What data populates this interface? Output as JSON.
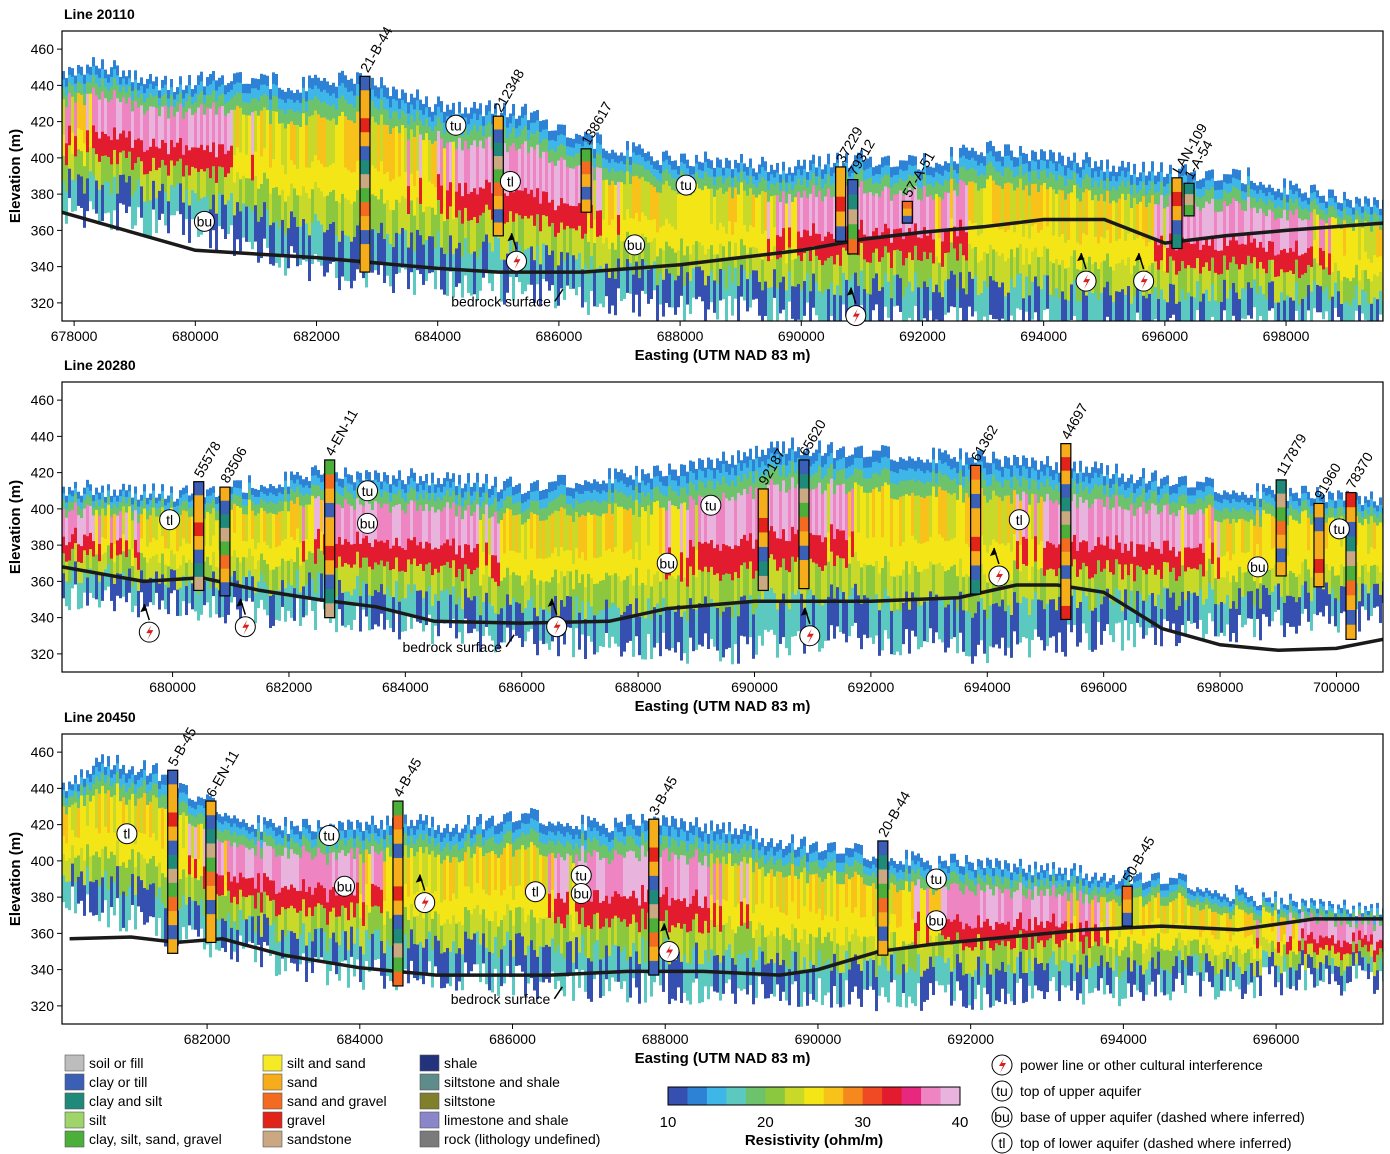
{
  "panels": [
    {
      "title": "Line 20110",
      "ylabel": "Elevation (m)",
      "xlabel": "Easting (UTM NAD 83 m)",
      "xlim": [
        677800,
        699600
      ],
      "ylim": [
        310,
        470
      ],
      "xticks": [
        "678000",
        "680000",
        "682000",
        "684000",
        "686000",
        "688000",
        "690000",
        "692000",
        "694000",
        "696000",
        "698000"
      ],
      "yticks": [
        "320",
        "340",
        "360",
        "380",
        "400",
        "420",
        "440",
        "460"
      ],
      "bedrock_label": "bedrock surface",
      "wells": [
        {
          "name": "21-B-44",
          "x": 682800,
          "top": 445,
          "bottom": 337
        },
        {
          "name": "212348",
          "x": 685000,
          "top": 423,
          "bottom": 357
        },
        {
          "name": "138617",
          "x": 686450,
          "top": 405,
          "bottom": 370
        },
        {
          "name": "37229",
          "x": 690650,
          "top": 395,
          "bottom": 354
        },
        {
          "name": "79312",
          "x": 690850,
          "top": 388,
          "bottom": 347
        },
        {
          "name": "57-A-51",
          "x": 691750,
          "top": 376,
          "bottom": 364
        },
        {
          "name": "LAN-109",
          "x": 696200,
          "top": 389,
          "bottom": 350
        },
        {
          "name": "1-A-54",
          "x": 696400,
          "top": 386,
          "bottom": 368
        }
      ],
      "markers": [
        {
          "code": "tu",
          "x": 684300,
          "y": 418
        },
        {
          "code": "tl",
          "x": 685200,
          "y": 387
        },
        {
          "code": "bu",
          "x": 680150,
          "y": 365
        },
        {
          "code": "tu",
          "x": 688100,
          "y": 385
        },
        {
          "code": "bu",
          "x": 687250,
          "y": 352
        },
        {
          "code": "pl",
          "x": 685300,
          "y": 343
        },
        {
          "code": "pl",
          "x": 690900,
          "y": 313
        },
        {
          "code": "pl",
          "x": 694700,
          "y": 332
        },
        {
          "code": "pl",
          "x": 695650,
          "y": 332
        }
      ]
    },
    {
      "title": "Line 20280",
      "ylabel": "Elevation (m)",
      "xlabel": "Easting (UTM NAD 83 m)",
      "xlim": [
        678100,
        700800
      ],
      "ylim": [
        310,
        470
      ],
      "xticks": [
        "680000",
        "682000",
        "684000",
        "686000",
        "688000",
        "690000",
        "692000",
        "694000",
        "696000",
        "698000",
        "700000"
      ],
      "yticks": [
        "320",
        "340",
        "360",
        "380",
        "400",
        "420",
        "440",
        "460"
      ],
      "bedrock_label": "bedrock surface",
      "wells": [
        {
          "name": "55578",
          "x": 680450,
          "top": 415,
          "bottom": 355
        },
        {
          "name": "83506",
          "x": 680900,
          "top": 412,
          "bottom": 352
        },
        {
          "name": "4-EN-11",
          "x": 682700,
          "top": 427,
          "bottom": 340
        },
        {
          "name": "92187",
          "x": 690150,
          "top": 411,
          "bottom": 355
        },
        {
          "name": "65620",
          "x": 690850,
          "top": 427,
          "bottom": 356
        },
        {
          "name": "61362",
          "x": 693800,
          "top": 424,
          "bottom": 353
        },
        {
          "name": "44697",
          "x": 695350,
          "top": 436,
          "bottom": 339
        },
        {
          "name": "117879",
          "x": 699050,
          "top": 416,
          "bottom": 363
        },
        {
          "name": "91960",
          "x": 699700,
          "top": 403,
          "bottom": 357
        },
        {
          "name": "78370",
          "x": 700250,
          "top": 409,
          "bottom": 328
        }
      ],
      "markers": [
        {
          "code": "tl",
          "x": 679950,
          "y": 394
        },
        {
          "code": "tu",
          "x": 683350,
          "y": 410
        },
        {
          "code": "bu",
          "x": 683350,
          "y": 392
        },
        {
          "code": "tu",
          "x": 689250,
          "y": 402
        },
        {
          "code": "bu",
          "x": 688500,
          "y": 370
        },
        {
          "code": "tl",
          "x": 694550,
          "y": 394
        },
        {
          "code": "bu",
          "x": 698650,
          "y": 368
        },
        {
          "code": "tu",
          "x": 700050,
          "y": 389
        },
        {
          "code": "pl",
          "x": 679600,
          "y": 332
        },
        {
          "code": "pl",
          "x": 681250,
          "y": 335
        },
        {
          "code": "pl",
          "x": 686600,
          "y": 335
        },
        {
          "code": "pl",
          "x": 690950,
          "y": 330
        },
        {
          "code": "pl",
          "x": 694200,
          "y": 363
        }
      ]
    },
    {
      "title": "Line 20450",
      "ylabel": "Elevation (m)",
      "xlabel": "Easting (UTM NAD 83 m)",
      "xlim": [
        680100,
        697400
      ],
      "ylim": [
        310,
        470
      ],
      "xticks": [
        "682000",
        "684000",
        "686000",
        "688000",
        "690000",
        "692000",
        "694000",
        "696000"
      ],
      "yticks": [
        "320",
        "340",
        "360",
        "380",
        "400",
        "420",
        "440",
        "460"
      ],
      "bedrock_label": "bedrock surface",
      "wells": [
        {
          "name": "5-B-45",
          "x": 681550,
          "top": 450,
          "bottom": 349
        },
        {
          "name": "6-EN-11",
          "x": 682050,
          "top": 433,
          "bottom": 355
        },
        {
          "name": "4-B-45",
          "x": 684500,
          "top": 433,
          "bottom": 331
        },
        {
          "name": "3-B-45",
          "x": 687850,
          "top": 423,
          "bottom": 337
        },
        {
          "name": "20-B-44",
          "x": 690850,
          "top": 411,
          "bottom": 348
        },
        {
          "name": "50-B-45",
          "x": 694050,
          "top": 386,
          "bottom": 364
        }
      ],
      "markers": [
        {
          "code": "tl",
          "x": 680950,
          "y": 415
        },
        {
          "code": "tu",
          "x": 683600,
          "y": 414
        },
        {
          "code": "bu",
          "x": 683800,
          "y": 386
        },
        {
          "code": "tu",
          "x": 686900,
          "y": 392
        },
        {
          "code": "tl",
          "x": 686300,
          "y": 383
        },
        {
          "code": "bu",
          "x": 686900,
          "y": 382
        },
        {
          "code": "tu",
          "x": 691550,
          "y": 390
        },
        {
          "code": "bu",
          "x": 691550,
          "y": 367
        },
        {
          "code": "pl",
          "x": 684850,
          "y": 377
        },
        {
          "code": "pl",
          "x": 688050,
          "y": 350
        }
      ]
    }
  ],
  "lithology_legend": [
    {
      "label": "soil or fill",
      "color": "#bdbdbd"
    },
    {
      "label": "clay or till",
      "color": "#3a5fb4"
    },
    {
      "label": "clay and silt",
      "color": "#1f8a7a"
    },
    {
      "label": "silt",
      "color": "#9fd46a"
    },
    {
      "label": "clay, silt, sand, gravel",
      "color": "#4caf3a"
    },
    {
      "label": "silt and sand",
      "color": "#f6ea27"
    },
    {
      "label": "sand",
      "color": "#f6ad1c"
    },
    {
      "label": "sand and gravel",
      "color": "#f26b21"
    },
    {
      "label": "gravel",
      "color": "#e2231a"
    },
    {
      "label": "sandstone",
      "color": "#c9a882"
    },
    {
      "label": "shale",
      "color": "#23327c"
    },
    {
      "label": "siltstone and shale",
      "color": "#5e8c8a"
    },
    {
      "label": "siltstone",
      "color": "#7f7f2c"
    },
    {
      "label": "limestone and shale",
      "color": "#8a86c9"
    },
    {
      "label": "rock (lithology undefined)",
      "color": "#7a7a7a"
    }
  ],
  "colorbar": {
    "title": "Resistivity (ohm/m)",
    "ticks": [
      "10",
      "20",
      "30",
      "40"
    ],
    "colors": [
      "#3550b0",
      "#2e82d6",
      "#3fb6e8",
      "#5cc9c0",
      "#6cc36b",
      "#8bc73f",
      "#c8d929",
      "#f4e517",
      "#f8c21b",
      "#f5891d",
      "#ef4a23",
      "#e31b2e",
      "#e8287e",
      "#ee84c2",
      "#e8b3dc"
    ]
  },
  "symbol_legend": [
    {
      "code": "pl",
      "label": "power line or other cultural interference"
    },
    {
      "code": "tu",
      "label": "top of upper aquifer"
    },
    {
      "code": "bu",
      "label": "base of upper aquifer (dashed where inferred)"
    },
    {
      "code": "tl",
      "label": "top of lower aquifer (dashed where inferred)"
    }
  ],
  "marker_text": {
    "tu": "tu",
    "bu": "bu",
    "tl": "tl"
  }
}
